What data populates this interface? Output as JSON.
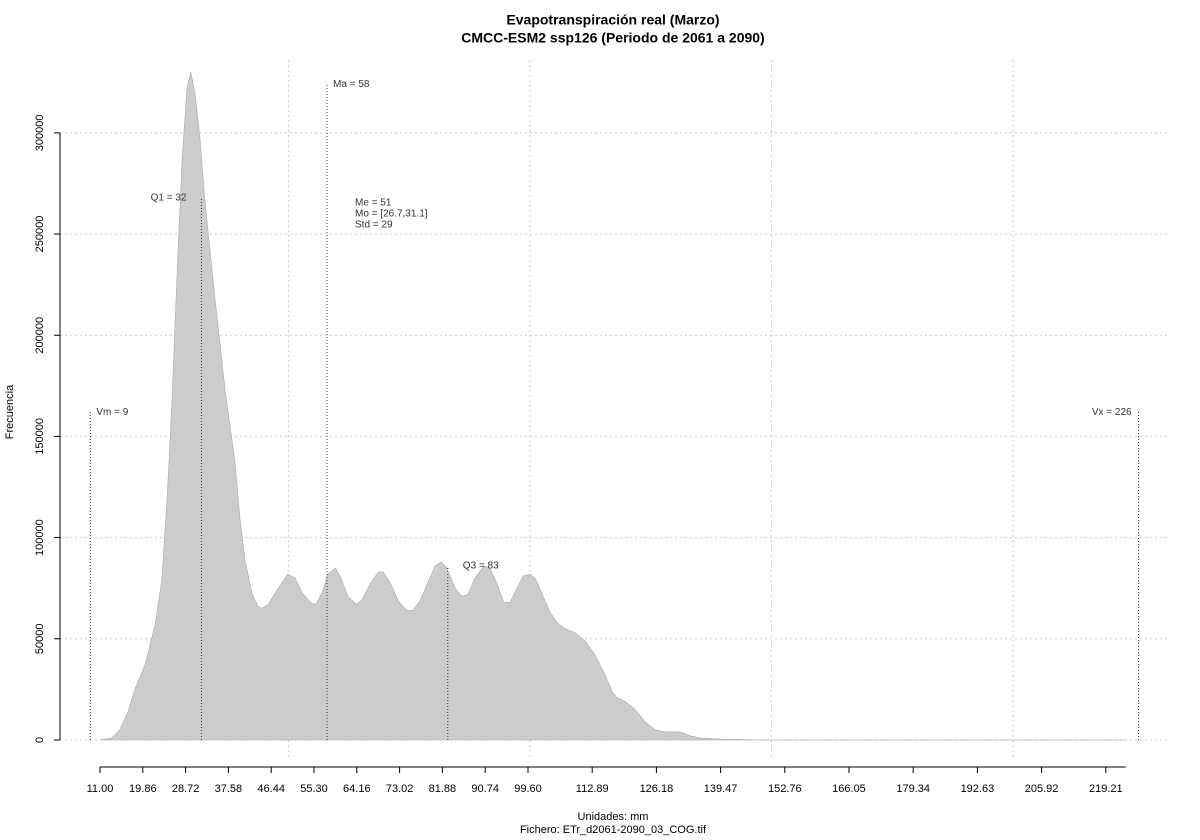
{
  "chart_data": {
    "type": "area",
    "title": "Evapotranspiración real (Marzo)",
    "subtitle": "CMCC-ESM2 ssp126 (Periodo de 2061 a 2090)",
    "x_label": "Unidades: mm",
    "file_label": "Fichero: ETr_d2061-2090_03_COG.tif",
    "y_label": "Frecuencia",
    "color": "#cccccc",
    "x": [
      11.0,
      13.5,
      15.1,
      16.8,
      18.2,
      20.3,
      22.4,
      23.8,
      24.9,
      25.9,
      26.9,
      28.0,
      29.0,
      29.8,
      30.7,
      31.7,
      32.7,
      34.8,
      36.9,
      38.9,
      40.0,
      41.0,
      42.5,
      43.7,
      44.5,
      45.8,
      47.9,
      49.9,
      51.4,
      52.8,
      54.5,
      55.7,
      57.0,
      58.2,
      59.7,
      60.9,
      62.3,
      64.0,
      65.2,
      66.9,
      68.6,
      69.6,
      71.0,
      72.7,
      74.4,
      75.8,
      77.3,
      78.9,
      80.4,
      81.6,
      82.8,
      84.5,
      85.9,
      87.2,
      88.6,
      90.5,
      91.7,
      93.2,
      94.6,
      95.9,
      97.1,
      98.6,
      100.0,
      101.3,
      102.7,
      104.2,
      105.6,
      107.3,
      109.3,
      111.4,
      113.5,
      115.6,
      117.0,
      118.0,
      119.7,
      121.8,
      123.8,
      125.9,
      128.0,
      131.1,
      133.2,
      135.2,
      139.4,
      147.6,
      223.4
    ],
    "values": [
      0,
      1000,
      5000,
      14000,
      25000,
      37000,
      57000,
      79000,
      119000,
      168000,
      227000,
      287000,
      322000,
      330000,
      319000,
      297000,
      267000,
      218000,
      173000,
      138000,
      109000,
      89000,
      72000,
      66000,
      65000,
      67000,
      75000,
      82000,
      80000,
      73000,
      68000,
      67000,
      73000,
      82000,
      85000,
      80000,
      71000,
      67000,
      69000,
      77000,
      83000,
      83000,
      78000,
      69000,
      64000,
      64000,
      69000,
      78000,
      86000,
      88000,
      85000,
      75000,
      71000,
      72000,
      80000,
      86000,
      85000,
      77000,
      68000,
      68000,
      74000,
      81000,
      82000,
      79000,
      71000,
      63000,
      58000,
      55000,
      53000,
      49000,
      42000,
      32000,
      24000,
      21000,
      19000,
      15000,
      9000,
      5000,
      4000,
      4000,
      2000,
      1000,
      500,
      0,
      0
    ],
    "xlim": [
      2.72,
      232.5
    ],
    "ylim": [
      -9900,
      336000
    ],
    "xticks": [
      {
        "value": 11,
        "label": "11.00"
      },
      19.86,
      28.72,
      37.58,
      46.44,
      {
        "value": 55.3,
        "label": "55.30"
      },
      64.16,
      73.02,
      81.88,
      90.74,
      {
        "value": 99.6,
        "label": "99.60"
      },
      112.89,
      126.18,
      139.47,
      152.76,
      166.05,
      179.34,
      192.63,
      205.92,
      219.21
    ],
    "yticks": [
      0,
      50000,
      100000,
      150000,
      200000,
      250000,
      300000
    ],
    "xgrid": [
      50,
      100,
      150,
      200
    ],
    "grid": true,
    "markers": [
      {
        "label": "Vm = 9",
        "x": 9,
        "top": 162000
      },
      {
        "label": "Q1 = 32",
        "x": 32,
        "top": 268000
      },
      {
        "label": "Ma = 58",
        "x": 58,
        "top": 324000
      },
      {
        "label": "Q3 = 83",
        "x": 83,
        "top": 86000
      },
      {
        "label": "Vx = 226",
        "x": 226,
        "top": 162000
      }
    ],
    "stats": [
      "Me = 51",
      "Mo = [26.7,31.1]",
      "Std = 29"
    ]
  }
}
